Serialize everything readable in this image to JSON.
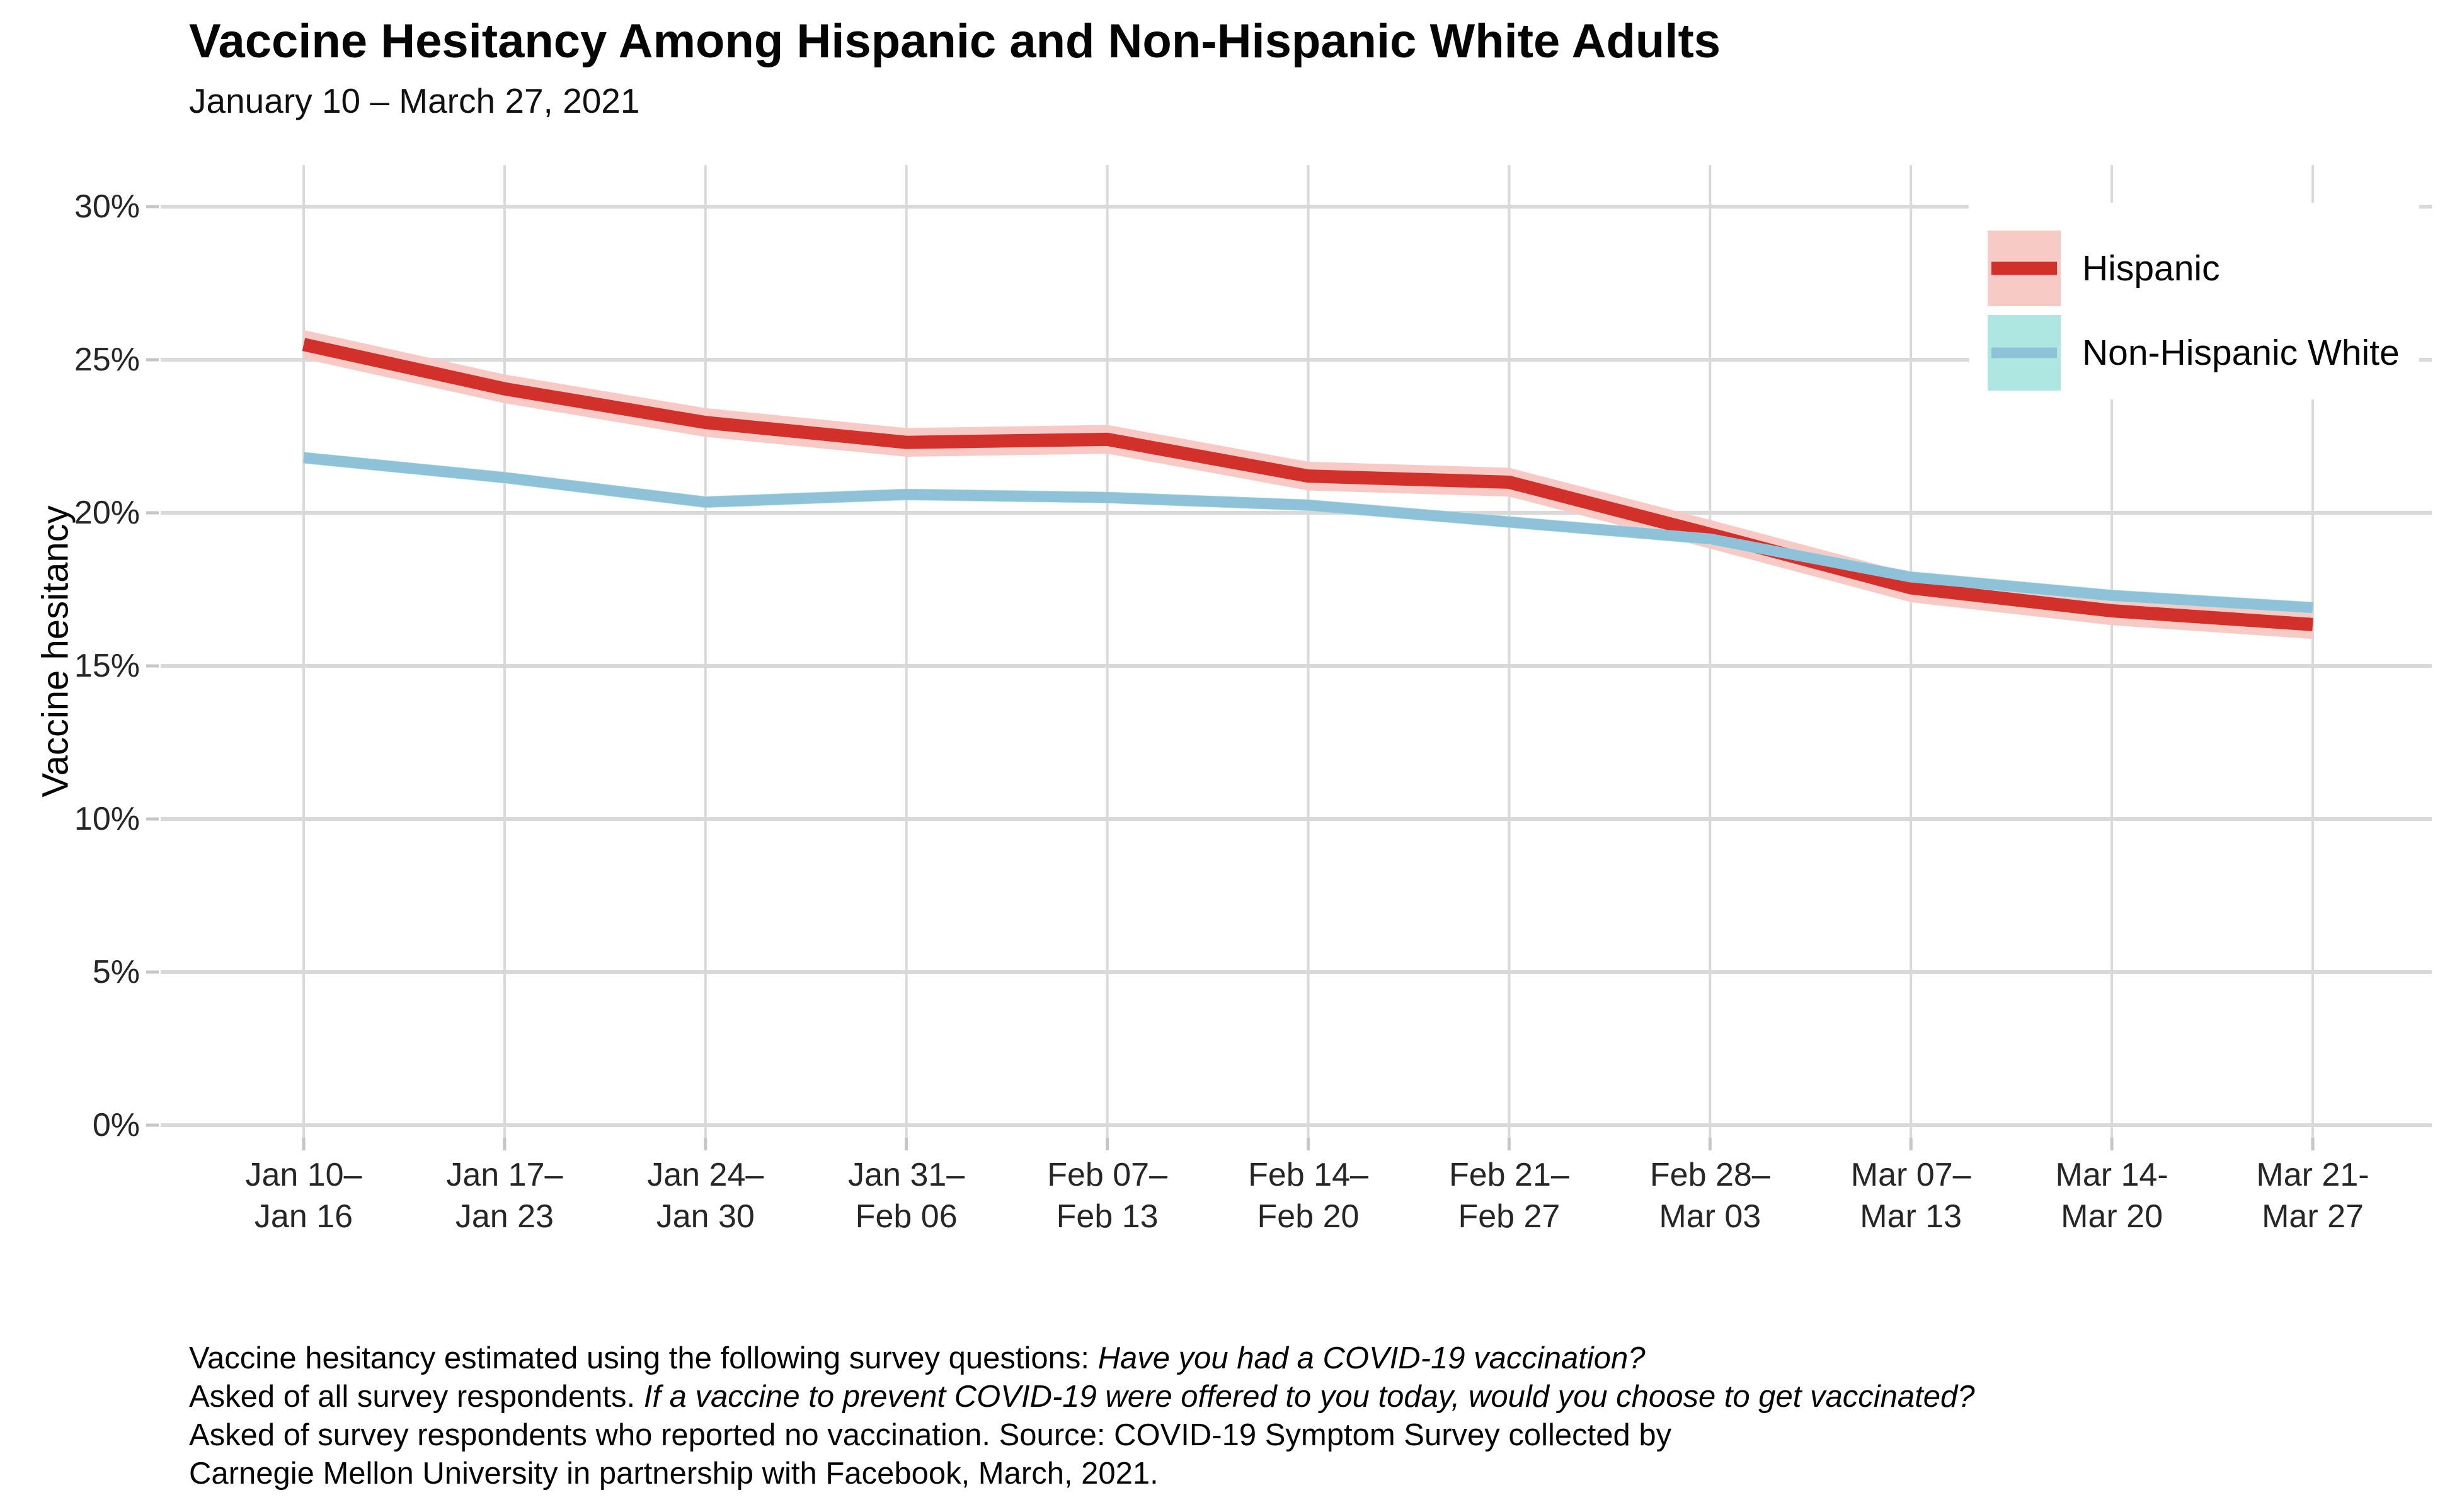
{
  "title": "Vaccine Hesitancy Among Hispanic and Non-Hispanic White Adults",
  "subtitle": "January 10 – March 27, 2021",
  "y_axis": {
    "title": "Vaccine hesitancy"
  },
  "colors": {
    "background": "#ffffff",
    "gridline": "#d9d9d9",
    "tick_mark": "#c6c6c6",
    "axis_text": "#262626",
    "hispanic_line": "#d2302b",
    "hispanic_band": "#f8cac6",
    "nhw_line": "#8fc2d9",
    "nhw_band": "#aee7e2"
  },
  "chart_data": {
    "type": "line",
    "title": "Vaccine Hesitancy Among Hispanic and Non-Hispanic White Adults",
    "subtitle": "January 10 – March 27, 2021",
    "xlabel": "",
    "ylabel": "Vaccine hesitancy",
    "ylim": [
      0,
      30
    ],
    "yticks": [
      0,
      5,
      10,
      15,
      20,
      25,
      30
    ],
    "ytick_suffix": "%",
    "grid": true,
    "legend_position": "top-right-inside",
    "categories": [
      [
        "Jan 10–",
        "Jan 16"
      ],
      [
        "Jan 17–",
        "Jan 23"
      ],
      [
        "Jan 24–",
        "Jan 30"
      ],
      [
        "Jan 31–",
        "Feb 06"
      ],
      [
        "Feb 07–",
        "Feb 13"
      ],
      [
        "Feb 14–",
        "Feb 20"
      ],
      [
        "Feb 21–",
        "Feb 27"
      ],
      [
        "Feb 28–",
        "Mar 03"
      ],
      [
        "Mar 07–",
        "Mar 13"
      ],
      [
        "Mar 14-",
        "Mar 20"
      ],
      [
        "Mar 21-",
        "Mar 27"
      ]
    ],
    "series": [
      {
        "name": "Hispanic",
        "color": "#d2302b",
        "band_color": "#f8cac6",
        "line_width": 21,
        "band_halfwidth_pct": 0.47,
        "values": [
          25.5,
          24.05,
          22.95,
          22.3,
          22.4,
          21.2,
          21.0,
          19.3,
          17.55,
          16.8,
          16.35
        ]
      },
      {
        "name": "Non-Hispanic White",
        "color": "#8fc2d9",
        "band_color": "#aee7e2",
        "line_width": 17,
        "band_halfwidth_pct": 0.19,
        "values": [
          21.8,
          21.15,
          20.35,
          20.6,
          20.5,
          20.25,
          19.7,
          19.15,
          17.9,
          17.3,
          16.9
        ]
      }
    ]
  },
  "caption": {
    "lines": [
      [
        {
          "text": "Vaccine hesitancy estimated using the following survey questions: ",
          "italic": false
        },
        {
          "text": "Have you had a COVID-19 vaccination?",
          "italic": true
        }
      ],
      [
        {
          "text": "Asked of all survey respondents. ",
          "italic": false
        },
        {
          "text": "If a vaccine to prevent COVID-19 were offered to you today, would you choose to get vaccinated?",
          "italic": true
        }
      ],
      [
        {
          "text": "Asked of survey respondents who reported no vaccination. Source: COVID-19 Symptom Survey collected by",
          "italic": false
        }
      ],
      [
        {
          "text": "Carnegie Mellon University in partnership with Facebook, March, 2021.",
          "italic": false
        }
      ]
    ]
  }
}
